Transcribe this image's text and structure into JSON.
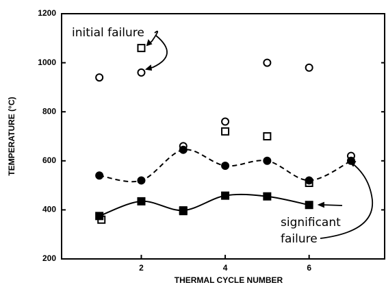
{
  "chart_data": {
    "type": "scatter",
    "xlabel": "THERMAL CYCLE NUMBER",
    "ylabel": "TEMPERATURE (°C)",
    "xlim": [
      0.1,
      7.8
    ],
    "ylim": [
      200,
      1200
    ],
    "xticks": [
      2,
      4,
      6
    ],
    "yticks": [
      200,
      400,
      600,
      800,
      1000,
      1200
    ],
    "annotations": [
      "initial failure",
      "significant",
      "failure"
    ],
    "series": [
      {
        "marker": "open-circle",
        "color": "#000000",
        "line": null,
        "x": [
          1,
          2,
          3,
          4,
          5,
          6,
          7
        ],
        "values": [
          940,
          960,
          660,
          760,
          1000,
          980,
          620
        ]
      },
      {
        "marker": "open-square",
        "color": "#000000",
        "line": null,
        "x": [
          1.05,
          2,
          3,
          4,
          5,
          6
        ],
        "values": [
          360,
          1060,
          395,
          720,
          700,
          510
        ]
      },
      {
        "marker": "filled-circle",
        "color": "#000000",
        "line": "dashed",
        "x": [
          1,
          2,
          3,
          4,
          5,
          6,
          7
        ],
        "values": [
          540,
          520,
          645,
          580,
          600,
          520,
          600
        ]
      },
      {
        "marker": "filled-square",
        "color": "#000000",
        "line": "solid",
        "x": [
          1,
          2,
          3,
          4,
          5,
          6
        ],
        "values": [
          375,
          435,
          398,
          458,
          455,
          420
        ]
      }
    ]
  }
}
